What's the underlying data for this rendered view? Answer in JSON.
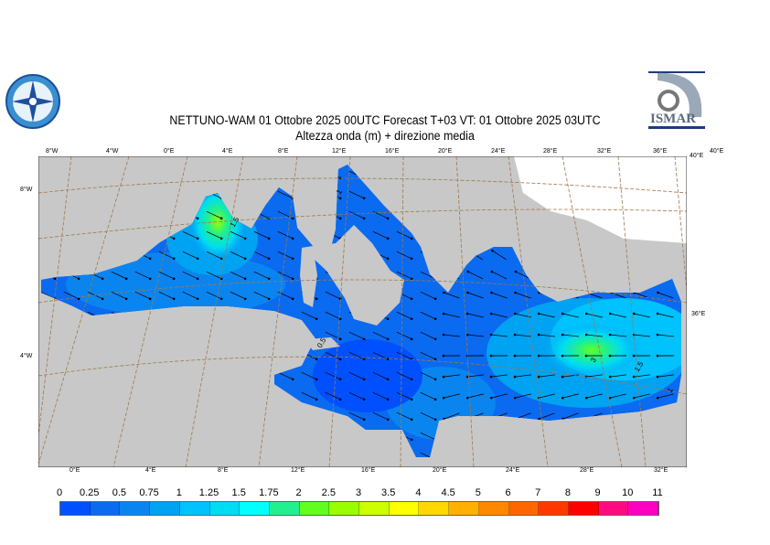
{
  "header": {
    "title": "NETTUNO-WAM  01  Ottobre  2025 00UTC Forecast T+03 VT: 01  Ottobre  2025 03UTC",
    "subtitle": "Altezza onda (m) + direzione media",
    "logo_left": "compass-rose-logo",
    "logo_right": "ISMAR"
  },
  "map": {
    "top_ticks": [
      "8°W",
      "4°W",
      "0°E",
      "4°E",
      "8°E",
      "12°E",
      "16°E",
      "20°E",
      "24°E",
      "28°E",
      "32°E",
      "36°E",
      "40°E"
    ],
    "bottom_ticks": [
      "0°E",
      "4°E",
      "8°E",
      "12°E",
      "16°E",
      "20°E",
      "24°E",
      "28°E",
      "32°E"
    ],
    "left_ticks": [
      "8°W",
      "40°N",
      "4°W"
    ],
    "right_ticks": [
      "40°E",
      "36°E"
    ],
    "contour_labels": [
      "1",
      "1.5",
      "3",
      "1.5",
      "0.5",
      "1"
    ],
    "land_color": "#c8c8c8",
    "grid_color": "#a0784a"
  },
  "colorbar": {
    "labels": [
      "0",
      "0.25",
      "0.5",
      "0.75",
      "1",
      "1.25",
      "1.5",
      "1.75",
      "2",
      "2.5",
      "3",
      "3.5",
      "4",
      "4.5",
      "5",
      "6",
      "7",
      "8",
      "9",
      "10",
      "11"
    ],
    "colors": [
      "#0050ff",
      "#0a6af0",
      "#0a85ef",
      "#00a2f2",
      "#00c2fc",
      "#00dcf2",
      "#00ffff",
      "#22f08e",
      "#62ff1e",
      "#99ff00",
      "#ccff00",
      "#ffff00",
      "#ffd800",
      "#ffb000",
      "#ff8800",
      "#ff6600",
      "#ff3800",
      "#ff0000",
      "#ff0a80",
      "#ff00c0"
    ]
  }
}
